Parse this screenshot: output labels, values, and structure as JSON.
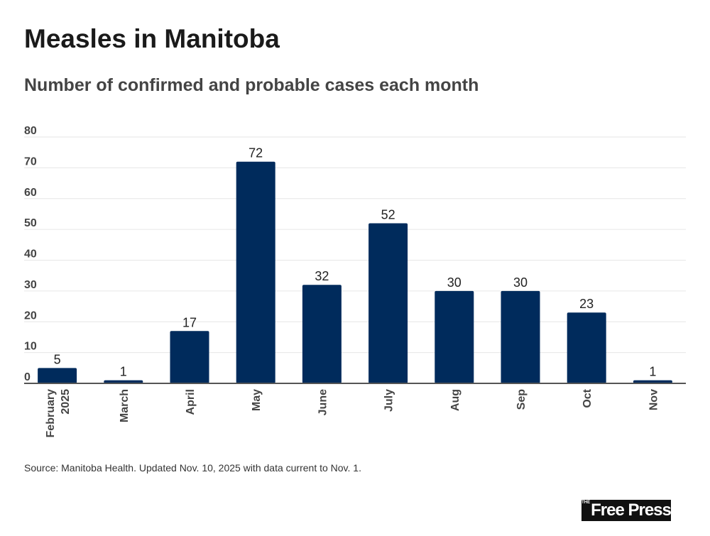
{
  "title": "Measles in Manitoba",
  "subtitle": "Number of confirmed and probable cases each month",
  "source": "Source: Manitoba Health. Updated Nov. 10, 2025 with data current to Nov. 1.",
  "logo": {
    "small": "THE",
    "text": "Free Press"
  },
  "colors": {
    "bar": "#002b5c",
    "grid": "#e6e6e6",
    "axis": "#555555"
  },
  "chart_data": {
    "type": "bar",
    "title": "Measles in Manitoba",
    "subtitle": "Number of confirmed and probable cases each month",
    "categories": [
      [
        "February",
        "2025"
      ],
      [
        "March"
      ],
      [
        "April"
      ],
      [
        "May"
      ],
      [
        "June"
      ],
      [
        "July"
      ],
      [
        "Aug"
      ],
      [
        "Sep"
      ],
      [
        "Oct"
      ],
      [
        "Nov"
      ]
    ],
    "values": [
      5,
      1,
      17,
      72,
      32,
      52,
      30,
      30,
      23,
      1
    ],
    "ylim": [
      0,
      80
    ],
    "yticks": [
      0,
      10,
      20,
      30,
      40,
      50,
      60,
      70,
      80
    ],
    "grid": true,
    "data_labels": true
  }
}
